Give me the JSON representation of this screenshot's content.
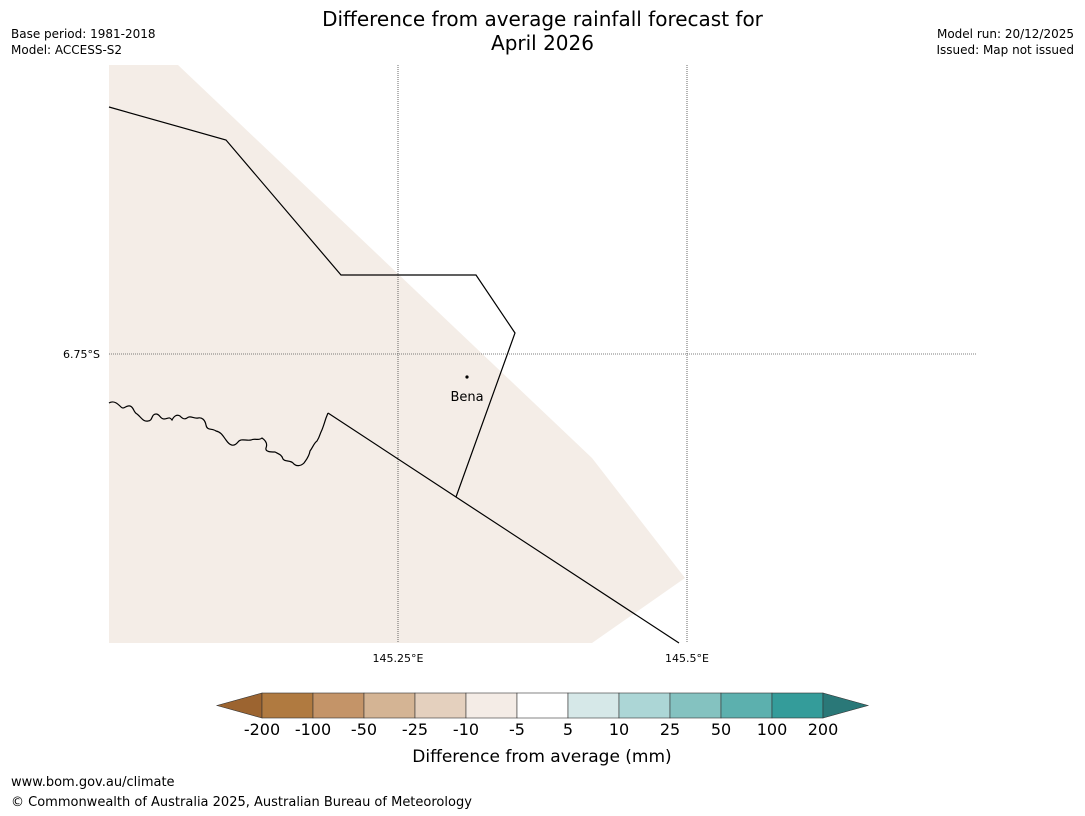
{
  "title_line1": "Difference from average rainfall forecast for",
  "title_line2": "April 2026",
  "meta_left": [
    "Base period: 1981-2018",
    "Model: ACCESS-S2"
  ],
  "meta_right": [
    "Model run: 20/12/2025",
    "Issued: Map not issued"
  ],
  "grid": {
    "lon_ticks": [
      "145.25°E",
      "145.5°E"
    ],
    "lat_ticks": [
      "6.75°S"
    ]
  },
  "place": {
    "name": "Bena"
  },
  "colorbar": {
    "title": "Difference from average (mm)",
    "tick_labels": [
      "-200",
      "-100",
      "-50",
      "-25",
      "-10",
      "-5",
      "5",
      "10",
      "25",
      "50",
      "100",
      "200"
    ],
    "colors": [
      "#9c6430",
      "#b07a40",
      "#c49468",
      "#d4b494",
      "#e4d0be",
      "#f4ece6",
      "#ffffff",
      "#d6e8e8",
      "#acd6d6",
      "#84c2c0",
      "#5cb0ae",
      "#349c9a",
      "#2a7878"
    ],
    "region_fill": "#f4ede7"
  },
  "footer": {
    "url": "www.bom.gov.au/climate",
    "copyright": "© Commonwealth of Australia 2025, Australian Bureau of Meteorology"
  }
}
